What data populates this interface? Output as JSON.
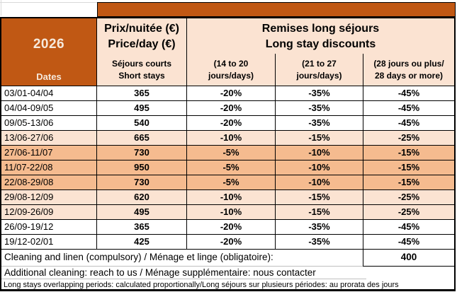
{
  "colors": {
    "dark_orange": "#C05814",
    "header_text": "#F6E9DC",
    "light_peach": "#FBE3D2",
    "medium_peach": "#F5BB8F",
    "separator_gray": "#BFBFBF",
    "gridline_gray": "#D9D9D9"
  },
  "header": {
    "year": "2026",
    "dates_label": "Dates",
    "price_line1": "Prix/nuitée (€)",
    "price_line2": "Price/day (€)",
    "price_sub1": "Séjours courts",
    "price_sub2": "Short stays",
    "discounts_line1": "Remises long séjours",
    "discounts_line2": "Long stay discounts",
    "discount_cols": [
      {
        "line1": "(14 to 20",
        "line2": "jours/days)"
      },
      {
        "line1": "(21 to 27",
        "line2": "jours/days)"
      },
      {
        "line1": "(28 jours ou plus/",
        "line2": "28 days or more)"
      }
    ]
  },
  "rows": [
    {
      "dates": "03/01-04/04",
      "price": "365",
      "d14": "-20%",
      "d21": "-35%",
      "d28": "-45%",
      "band": "white"
    },
    {
      "dates": "04/04-09/05",
      "price": "495",
      "d14": "-20%",
      "d21": "-35%",
      "d28": "-45%",
      "band": "white"
    },
    {
      "dates": "09/05-13/06",
      "price": "540",
      "d14": "-20%",
      "d21": "-35%",
      "d28": "-45%",
      "band": "white"
    },
    {
      "dates": "13/06-27/06",
      "price": "665",
      "d14": "-10%",
      "d21": "-15%",
      "d28": "-25%",
      "band": "light"
    },
    {
      "dates": "27/06-11/07",
      "price": "730",
      "d14": "-5%",
      "d21": "-10%",
      "d28": "-15%",
      "band": "medium"
    },
    {
      "dates": "11/07-22/08",
      "price": "950",
      "d14": "-5%",
      "d21": "-10%",
      "d28": "-15%",
      "band": "medium"
    },
    {
      "dates": "22/08-29/08",
      "price": "730",
      "d14": "-5%",
      "d21": "-10%",
      "d28": "-15%",
      "band": "medium"
    },
    {
      "dates": "29/08-12/09",
      "price": "620",
      "d14": "-10%",
      "d21": "-15%",
      "d28": "-25%",
      "band": "light"
    },
    {
      "dates": "12/09-26/09",
      "price": "495",
      "d14": "-10%",
      "d21": "-15%",
      "d28": "-25%",
      "band": "light"
    },
    {
      "dates": "26/09-19/12",
      "price": "365",
      "d14": "-20%",
      "d21": "-35%",
      "d28": "-45%",
      "band": "white"
    },
    {
      "dates": "19/12-02/01",
      "price": "425",
      "d14": "-20%",
      "d21": "-35%",
      "d28": "-45%",
      "band": "white"
    }
  ],
  "footer": {
    "cleaning_label": "Cleaning and linen (compulsory) / Ménage et linge (obligatoire):",
    "cleaning_value": "400",
    "additional_label": "Additional cleaning: reach to us / Ménage supplémentaire: nous contacter",
    "overlap_note": "Long stays overlapping periods: calculated proportionally/Long séjours sur plusieurs périodes: au prorata des jours"
  }
}
